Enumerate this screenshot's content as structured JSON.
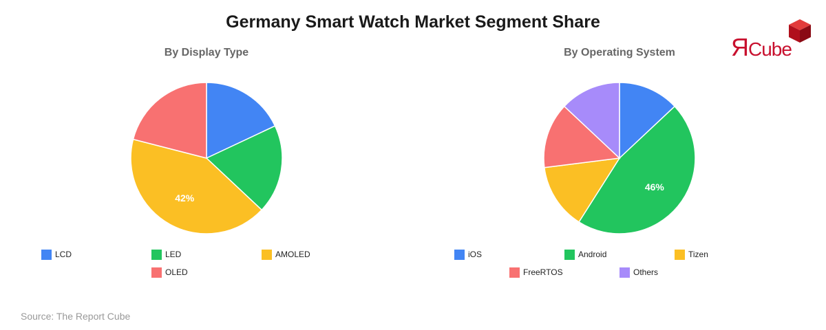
{
  "title": "Germany Smart Watch Market Segment Share",
  "logo": {
    "text_r": "Я",
    "text_rest": "Cube"
  },
  "source": "Source: The Report Cube",
  "colors": {
    "blue": "#4285F4",
    "green": "#22C55E",
    "yellow": "#FBBF24",
    "red": "#F87171",
    "purple": "#A78BFA",
    "brand": "#C8102E"
  },
  "chart_data": [
    {
      "type": "pie",
      "title": "By Display Type",
      "categories": [
        "LCD",
        "LED",
        "AMOLED",
        "OLED"
      ],
      "values": [
        18,
        19,
        42,
        21
      ],
      "colors": [
        "#4285F4",
        "#22C55E",
        "#FBBF24",
        "#F87171"
      ],
      "data_labels": [
        "",
        "",
        "42%",
        ""
      ],
      "legend": "bottom"
    },
    {
      "type": "pie",
      "title": "By Operating System",
      "categories": [
        "iOS",
        "Android",
        "Tizen",
        "FreeRTOS",
        "Others"
      ],
      "values": [
        13,
        46,
        14,
        14,
        13
      ],
      "colors": [
        "#4285F4",
        "#22C55E",
        "#FBBF24",
        "#F87171",
        "#A78BFA"
      ],
      "data_labels": [
        "",
        "46%",
        "",
        "",
        ""
      ],
      "legend": "bottom"
    }
  ]
}
